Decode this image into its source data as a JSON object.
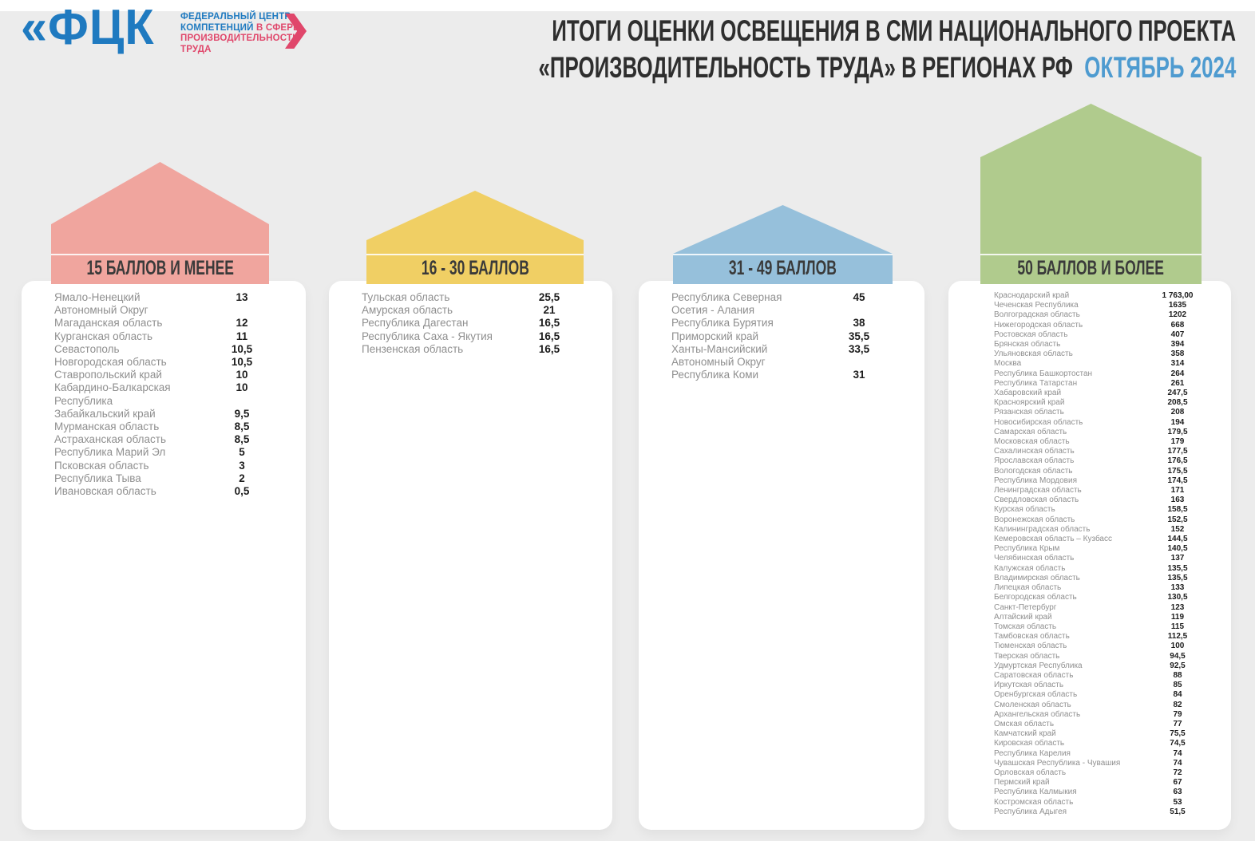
{
  "page": {
    "background": "#ECECEC",
    "topbar_color": "#FFFFFF"
  },
  "logo": {
    "mark": "«ФЦК",
    "mark_color": "#1F7AC0",
    "chevron_color": "#E0476B",
    "lines": [
      [
        {
          "text": "ФЕДЕРАЛЬНЫЙ ЦЕНТР",
          "color": "#1F7AC0"
        }
      ],
      [
        {
          "text": "КОМПЕТЕНЦИЙ ",
          "color": "#1F7AC0"
        },
        {
          "text": "В СФЕРЕ",
          "color": "#E0476B"
        }
      ],
      [
        {
          "text": "ПРОИЗВОДИТЕЛЬНОСТИ",
          "color": "#E0476B"
        }
      ],
      [
        {
          "text": "ТРУДА",
          "color": "#E0476B"
        }
      ]
    ]
  },
  "title": {
    "line1": "ИТОГИ ОЦЕНКИ ОСВЕЩЕНИЯ В СМИ НАЦИОНАЛЬНОГО ПРОЕКТА",
    "line2": "«ПРОИЗВОДИТЕЛЬНОСТЬ ТРУДА» В РЕГИОНАХ РФ",
    "period": "ОКТЯБРЬ 2024",
    "text_color": "#2E2E2E",
    "period_color": "#4E9BD0"
  },
  "chart_data": {
    "type": "table",
    "title": "ИТОГИ ОЦЕНКИ ОСВЕЩЕНИЯ В СМИ НАЦИОНАЛЬНОГО ПРОЕКТА «ПРОИЗВОДИТЕЛЬНОСТЬ ТРУДА» В РЕГИОНАХ РФ",
    "period": "ОКТЯБРЬ 2024",
    "groups": [
      {
        "label": "15 БАЛЛОВ И МЕНЕЕ",
        "color": "#F0A59E",
        "items": [
          {
            "name": "Ямало-Ненецкий Автономный Округ",
            "value": "13"
          },
          {
            "name": "Магаданская область",
            "value": "12"
          },
          {
            "name": "Курганская область",
            "value": "11"
          },
          {
            "name": "Севастополь",
            "value": "10,5"
          },
          {
            "name": "Новгородская область",
            "value": "10,5"
          },
          {
            "name": "Ставропольский край",
            "value": "10"
          },
          {
            "name": "Кабардино-Балкарская Республика",
            "value": "10"
          },
          {
            "name": "Забайкальский край",
            "value": "9,5"
          },
          {
            "name": "Мурманская область",
            "value": "8,5"
          },
          {
            "name": "Астраханская область",
            "value": "8,5"
          },
          {
            "name": "Республика Марий Эл",
            "value": "5"
          },
          {
            "name": "Псковская область",
            "value": "3"
          },
          {
            "name": "Республика Тыва",
            "value": "2"
          },
          {
            "name": "Ивановская область",
            "value": "0,5"
          }
        ]
      },
      {
        "label": "16 - 30 БАЛЛОВ",
        "color": "#F0CF64",
        "items": [
          {
            "name": "Тульская область",
            "value": "25,5"
          },
          {
            "name": "Амурская область",
            "value": "21"
          },
          {
            "name": "Республика Дагестан",
            "value": "16,5"
          },
          {
            "name": "Республика Саха - Якутия",
            "value": "16,5"
          },
          {
            "name": "Пензенская область",
            "value": "16,5"
          }
        ]
      },
      {
        "label": "31 - 49 БАЛЛОВ",
        "color": "#96C0DB",
        "items": [
          {
            "name": "Республика Северная Осетия - Алания",
            "value": "45"
          },
          {
            "name": "Республика Бурятия",
            "value": "38"
          },
          {
            "name": "Приморский край",
            "value": "35,5"
          },
          {
            "name": "Ханты-Мансийский Автономный Округ",
            "value": "33,5"
          },
          {
            "name": "Республика Коми",
            "value": "31"
          }
        ]
      },
      {
        "label": "50 БАЛЛОВ И БОЛЕЕ",
        "color": "#B0CB8D",
        "items": [
          {
            "name": "Краснодарский край",
            "value": "1 763,00"
          },
          {
            "name": "Чеченская Республика",
            "value": "1635"
          },
          {
            "name": "Волгоградская область",
            "value": "1202"
          },
          {
            "name": "Нижегородская область",
            "value": "668"
          },
          {
            "name": "Ростовская область",
            "value": "407"
          },
          {
            "name": "Брянская область",
            "value": "394"
          },
          {
            "name": "Ульяновская область",
            "value": "358"
          },
          {
            "name": "Москва",
            "value": "314"
          },
          {
            "name": "Республика Башкортостан",
            "value": "264"
          },
          {
            "name": "Республика Татарстан",
            "value": "261"
          },
          {
            "name": "Хабаровский край",
            "value": "247,5"
          },
          {
            "name": "Красноярский край",
            "value": "208,5"
          },
          {
            "name": "Рязанская область",
            "value": "208"
          },
          {
            "name": "Новосибирская область",
            "value": "194"
          },
          {
            "name": "Самарская область",
            "value": "179,5"
          },
          {
            "name": "Московская область",
            "value": "179"
          },
          {
            "name": "Сахалинская область",
            "value": "177,5"
          },
          {
            "name": "Ярославская область",
            "value": "176,5"
          },
          {
            "name": "Вологодская область",
            "value": "175,5"
          },
          {
            "name": "Республика Мордовия",
            "value": "174,5"
          },
          {
            "name": "Ленинградская область",
            "value": "171"
          },
          {
            "name": "Свердловская область",
            "value": "163"
          },
          {
            "name": "Курская область",
            "value": "158,5"
          },
          {
            "name": "Воронежская область",
            "value": "152,5"
          },
          {
            "name": "Калининградская область",
            "value": "152"
          },
          {
            "name": "Кемеровская область – Кузбасс",
            "value": "144,5"
          },
          {
            "name": "Республика Крым",
            "value": "140,5"
          },
          {
            "name": "Челябинская область",
            "value": "137"
          },
          {
            "name": "Калужская область",
            "value": "135,5"
          },
          {
            "name": "Владимирская область",
            "value": "135,5"
          },
          {
            "name": "Липецкая область",
            "value": "133"
          },
          {
            "name": "Белгородская область",
            "value": "130,5"
          },
          {
            "name": "Санкт-Петербург",
            "value": "123"
          },
          {
            "name": "Алтайский край",
            "value": "119"
          },
          {
            "name": "Томская область",
            "value": "115"
          },
          {
            "name": "Тамбовская область",
            "value": "112,5"
          },
          {
            "name": "Тюменская область",
            "value": "100"
          },
          {
            "name": "Тверская область",
            "value": "94,5"
          },
          {
            "name": "Удмуртская Республика",
            "value": "92,5"
          },
          {
            "name": "Саратовская область",
            "value": "88"
          },
          {
            "name": "Иркутская область",
            "value": "85"
          },
          {
            "name": "Оренбургская область",
            "value": "84"
          },
          {
            "name": "Смоленская область",
            "value": "82"
          },
          {
            "name": "Архангельская область",
            "value": "79"
          },
          {
            "name": "Омская область",
            "value": "77"
          },
          {
            "name": "Камчатский край",
            "value": "75,5"
          },
          {
            "name": "Кировская область",
            "value": "74,5"
          },
          {
            "name": "Республика Карелия",
            "value": "74"
          },
          {
            "name": "Чувашская Республика - Чувашия",
            "value": "74"
          },
          {
            "name": "Орловская область",
            "value": "72"
          },
          {
            "name": "Пермский край",
            "value": "67"
          },
          {
            "name": "Республика Калмыкия",
            "value": "63"
          },
          {
            "name": "Костромская область",
            "value": "53"
          },
          {
            "name": "Республика Адыгея",
            "value": "51,5"
          }
        ]
      }
    ]
  }
}
